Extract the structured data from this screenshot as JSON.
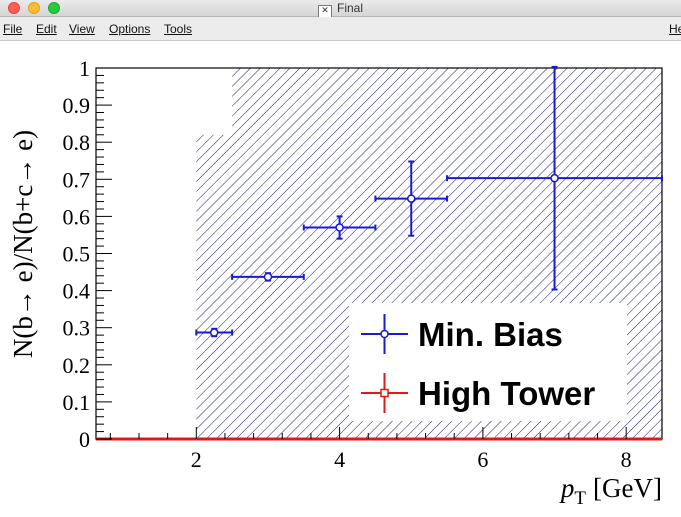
{
  "window": {
    "title": "Final",
    "icon": "x11-icon"
  },
  "menu": {
    "file": "File",
    "edit": "Edit",
    "view": "View",
    "options": "Options",
    "tools": "Tools",
    "help": "He"
  },
  "chart_data": {
    "type": "scatter",
    "ylabel": "N(b→ e)/N(b+c→ e)",
    "xlabel": "p_T [GeV]",
    "xlabel_main": "p",
    "xlabel_sub": "T",
    "xlabel_unit": "[GeV]",
    "xlim": [
      0.6,
      8.5
    ],
    "ylim": [
      0,
      1
    ],
    "x_ticks": [
      2,
      4,
      6,
      8
    ],
    "x_tick_labels": [
      "2",
      "4",
      "6",
      "8"
    ],
    "y_ticks": [
      0,
      0.1,
      0.2,
      0.3,
      0.4,
      0.5,
      0.6,
      0.7,
      0.8,
      0.9,
      1
    ],
    "y_tick_labels": [
      "0",
      "0.1",
      "0.2",
      "0.3",
      "0.4",
      "0.5",
      "0.6",
      "0.7",
      "0.8",
      "0.9",
      "1"
    ],
    "series": [
      {
        "name": "Min. Bias",
        "color": "#1a1ad0",
        "marker": "open-circle",
        "points": [
          {
            "x": 2.25,
            "y": 0.287,
            "xerr": 0.25,
            "yerr": 0.01
          },
          {
            "x": 3.0,
            "y": 0.437,
            "xerr": 0.5,
            "yerr": 0.01
          },
          {
            "x": 4.0,
            "y": 0.57,
            "xerr": 0.5,
            "yerr": 0.03
          },
          {
            "x": 5.0,
            "y": 0.648,
            "xerr": 0.5,
            "yerr": 0.1
          },
          {
            "x": 7.0,
            "y": 0.703,
            "xerr": 1.5,
            "yerr": 0.3
          }
        ]
      },
      {
        "name": "High Tower",
        "color": "#e01818",
        "marker": "open-square",
        "points": []
      }
    ],
    "band": {
      "pattern": "hatched",
      "color": "#1a1a6e",
      "regions": [
        {
          "x0": 2.0,
          "x1": 2.5,
          "y0": 0,
          "y1": 0.82
        },
        {
          "x0": 2.5,
          "x1": 8.5,
          "y0": 0,
          "y1": 1.0
        }
      ]
    },
    "baseline": {
      "y": 0,
      "color": "#e01818"
    },
    "legend_position": "bottom-right",
    "grid": false
  }
}
